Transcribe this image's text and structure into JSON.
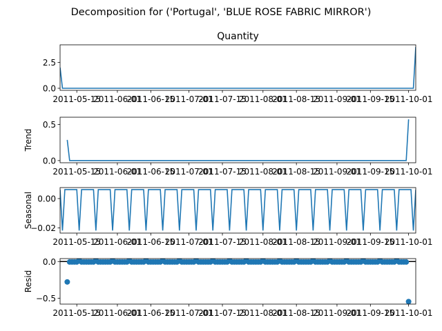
{
  "figure": {
    "suptitle": "Decomposition for ('Portugal', 'BLUE ROSE FABRIC MIRROR')"
  },
  "colors": {
    "series": "#1f77b4",
    "axis": "#000000",
    "background": "#ffffff"
  },
  "chart_data": [
    {
      "type": "line",
      "title": "Quantity",
      "ylabel": "",
      "xlim": [
        "2011-05-08",
        "2011-10-04"
      ],
      "ylim": [
        -0.2,
        4.2
      ],
      "yticks": [
        0.0,
        2.5
      ],
      "ytick_labels": [
        "0.0",
        "2.5"
      ],
      "xtick_labels": [
        "2011-05-15",
        "2011-06-01",
        "2011-06-15",
        "2011-07-01",
        "2011-07-15",
        "2011-08-01",
        "2011-08-15",
        "2011-09-01",
        "2011-09-15",
        "2011-10-01"
      ],
      "series": [
        {
          "points": [
            [
              "2011-05-08",
              2.0
            ],
            [
              "2011-05-09",
              0.0
            ],
            [
              "2011-10-03",
              0.0
            ],
            [
              "2011-10-04",
              4.0
            ]
          ]
        }
      ]
    },
    {
      "type": "line",
      "title": "",
      "ylabel": "Trend",
      "xlim": [
        "2011-05-08",
        "2011-10-04"
      ],
      "ylim": [
        -0.03,
        0.6
      ],
      "yticks": [
        0.0,
        0.5
      ],
      "ytick_labels": [
        "0.0",
        "0.5"
      ],
      "xtick_labels": [
        "2011-05-15",
        "2011-06-01",
        "2011-06-15",
        "2011-07-01",
        "2011-07-15",
        "2011-08-01",
        "2011-08-15",
        "2011-09-01",
        "2011-09-15",
        "2011-10-01"
      ],
      "series": [
        {
          "points": [
            [
              "2011-05-11",
              0.286
            ],
            [
              "2011-05-12",
              0.0
            ],
            [
              "2011-09-30",
              0.0
            ],
            [
              "2011-10-01",
              0.571
            ]
          ]
        }
      ]
    },
    {
      "type": "line",
      "title": "",
      "ylabel": "Seasonal",
      "xlim": [
        "2011-05-08",
        "2011-10-04"
      ],
      "ylim": [
        -0.0235,
        0.0075
      ],
      "yticks": [
        -0.02,
        0.0
      ],
      "ytick_labels": [
        "−0.02",
        "0.00"
      ],
      "xtick_labels": [
        "2011-05-15",
        "2011-06-01",
        "2011-06-15",
        "2011-07-01",
        "2011-07-15",
        "2011-08-01",
        "2011-08-15",
        "2011-09-01",
        "2011-09-15",
        "2011-10-01"
      ],
      "period_days": 7,
      "season_pattern": [
        0.0061,
        -0.0218,
        0.0061,
        0.0061,
        0.0061,
        0.0061,
        0.0061
      ],
      "season_start": "2011-05-08"
    },
    {
      "type": "scatter",
      "title": "",
      "ylabel": "Resid",
      "xlim": [
        "2011-05-08",
        "2011-10-04"
      ],
      "ylim": [
        -0.58,
        0.04
      ],
      "yticks": [
        -0.5,
        0.0
      ],
      "ytick_labels": [
        "−0.5",
        "0.0"
      ],
      "xtick_labels": [
        "2011-05-15",
        "2011-06-01",
        "2011-06-15",
        "2011-07-01",
        "2011-07-15",
        "2011-08-01",
        "2011-08-15",
        "2011-09-01",
        "2011-09-15",
        "2011-10-01"
      ],
      "zero_line": true,
      "outliers": [
        [
          "2011-05-11",
          -0.278
        ],
        [
          "2011-10-01",
          -0.546
        ]
      ],
      "resid_range": [
        "2011-05-11",
        "2011-10-01"
      ],
      "resid_offset": 0.0061,
      "season_pattern": [
        0.0061,
        -0.0218,
        0.0061,
        0.0061,
        0.0061,
        0.0061,
        0.0061
      ],
      "season_start": "2011-05-08"
    }
  ]
}
